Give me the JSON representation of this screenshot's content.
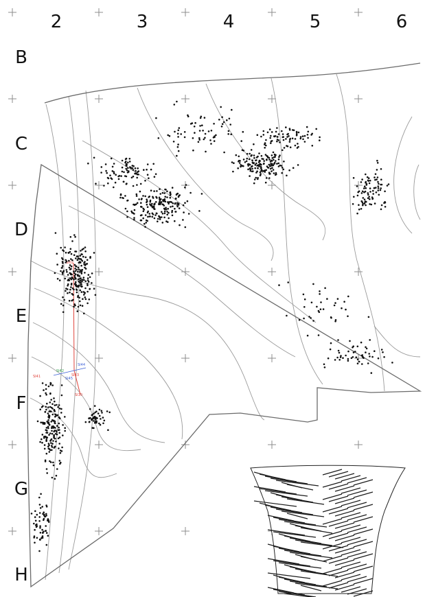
{
  "grid": {
    "columns": [
      "2",
      "3",
      "4",
      "5",
      "6"
    ],
    "rows": [
      "B",
      "C",
      "D",
      "E",
      "F",
      "G",
      "H"
    ]
  },
  "annotations": {
    "line_labels": [
      "SI02",
      "SI41",
      "SI42",
      "SI43",
      "SI44",
      "SI45",
      "SI10"
    ]
  },
  "colors": {
    "dots": "#111111",
    "contours": "#9a9a9a",
    "boundary": "#6a6a6a",
    "grid_cross": "#8c8c8c",
    "red_line": "#e0443c",
    "blue_label": "#3b5fd6",
    "green_label": "#2e9e4a"
  },
  "inset": {
    "name": "pottery-vessel-drawing"
  }
}
